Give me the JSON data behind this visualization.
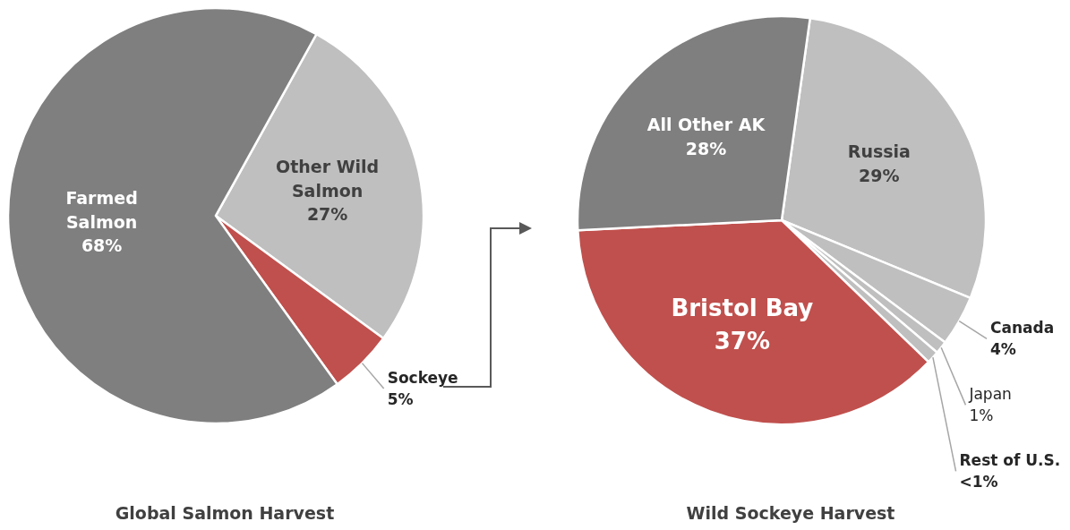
{
  "chart_data": [
    {
      "type": "pie",
      "title": "Global Salmon Harvest",
      "categories": [
        "Other Wild Salmon",
        "Sockeye",
        "Farmed Salmon"
      ],
      "values": [
        27,
        5,
        68
      ],
      "value_labels": [
        "27%",
        "5%",
        "68%"
      ],
      "colors": [
        "#bfbfbf",
        "#c0504d",
        "#7f7f7f"
      ]
    },
    {
      "type": "pie",
      "title": "Wild Sockeye Harvest",
      "categories": [
        "Russia",
        "Canada",
        "Japan",
        "Rest of U.S.",
        "Bristol Bay",
        "All Other AK"
      ],
      "values": [
        29,
        4,
        1,
        1,
        37,
        28
      ],
      "value_labels": [
        "29%",
        "4%",
        "1%",
        "<1%",
        "37%",
        "28%"
      ],
      "colors": [
        "#bfbfbf",
        "#bfbfbf",
        "#bfbfbf",
        "#bfbfbf",
        "#c0504d",
        "#7f7f7f"
      ]
    }
  ]
}
